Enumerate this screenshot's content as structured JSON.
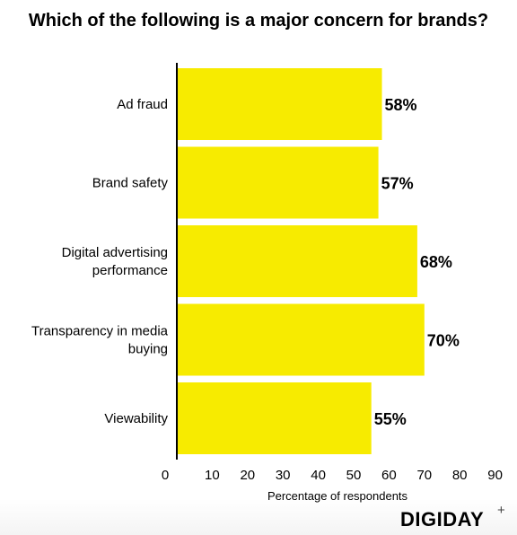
{
  "chart_data": {
    "type": "bar",
    "orientation": "horizontal",
    "title": "Which of the following is a major concern for brands?",
    "categories": [
      "Ad fraud",
      "Brand safety",
      "Digital advertising performance",
      "Transparency in media buying",
      "Viewability"
    ],
    "category_lines": [
      [
        "Ad fraud"
      ],
      [
        "Brand safety"
      ],
      [
        "Digital advertising",
        "performance"
      ],
      [
        "Transparency in media",
        "buying"
      ],
      [
        "Viewability"
      ]
    ],
    "values": [
      58,
      57,
      68,
      70,
      55
    ],
    "value_labels": [
      "58%",
      "57%",
      "68%",
      "70%",
      "55%"
    ],
    "xlabel": "Percentage of respondents",
    "ylabel": "",
    "xlim": [
      0,
      90
    ],
    "xticks": [
      0,
      10,
      20,
      30,
      40,
      50,
      60,
      70,
      80,
      90
    ],
    "grid": false,
    "bar_color": "#f7eb00"
  },
  "brand": {
    "logo_text": "DIGIDAY",
    "logo_suffix": "+"
  }
}
